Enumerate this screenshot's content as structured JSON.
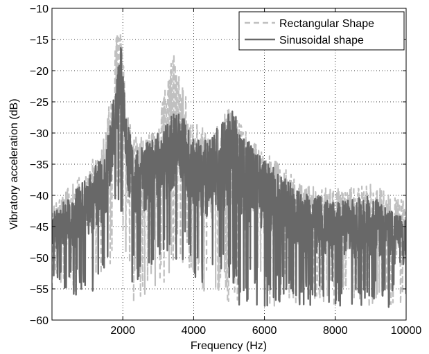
{
  "chart_data": {
    "type": "line",
    "title": "",
    "xlabel": "Frequency (Hz)",
    "ylabel": "Vibratory acceleration (dB)",
    "xlim": [
      0,
      10000
    ],
    "ylim": [
      -60,
      -10
    ],
    "x_ticks": [
      2000,
      4000,
      6000,
      8000,
      10000
    ],
    "y_ticks": [
      -60,
      -55,
      -50,
      -45,
      -40,
      -35,
      -30,
      -25,
      -20,
      -15,
      -10
    ],
    "grid": true,
    "legend_position": "top-right",
    "series": [
      {
        "name": "Rectangular Shape",
        "style": "dashed",
        "color": "#c0c0c0",
        "envelope": {
          "x": [
            0,
            500,
            1000,
            1500,
            1700,
            1850,
            1950,
            2100,
            2300,
            2600,
            3000,
            3400,
            3600,
            4000,
            4500,
            5000,
            5500,
            6000,
            6500,
            7000,
            8000,
            9000,
            10000
          ],
          "upper": [
            -42,
            -38,
            -36,
            -30,
            -22,
            -12,
            -13,
            -26,
            -30,
            -31,
            -29,
            -15,
            -21,
            -28,
            -30,
            -26,
            -30,
            -33,
            -35,
            -38,
            -39,
            -38,
            -41
          ],
          "lower": [
            -55,
            -56,
            -56,
            -55,
            -50,
            -40,
            -44,
            -54,
            -58,
            -58,
            -56,
            -52,
            -50,
            -55,
            -56,
            -58,
            -58,
            -58,
            -58,
            -58,
            -58,
            -58,
            -58
          ]
        }
      },
      {
        "name": "Sinusoidal shape",
        "style": "solid",
        "color": "#686868",
        "envelope": {
          "x": [
            0,
            500,
            1000,
            1500,
            1700,
            1850,
            1950,
            2100,
            2300,
            2600,
            3000,
            3400,
            3600,
            4000,
            4500,
            5000,
            5500,
            6000,
            6500,
            7000,
            8000,
            9000,
            10000
          ],
          "upper": [
            -43,
            -40,
            -37,
            -33,
            -26,
            -19,
            -15,
            -27,
            -33,
            -32,
            -30,
            -27,
            -26,
            -31,
            -31,
            -25,
            -31,
            -34,
            -37,
            -39,
            -41,
            -40,
            -44
          ],
          "lower": [
            -55,
            -56,
            -56,
            -54,
            -50,
            -42,
            -45,
            -52,
            -55,
            -52,
            -52,
            -51,
            -50,
            -53,
            -55,
            -57,
            -58,
            -58,
            -58,
            -58,
            -58,
            -58,
            -58
          ]
        }
      }
    ]
  }
}
